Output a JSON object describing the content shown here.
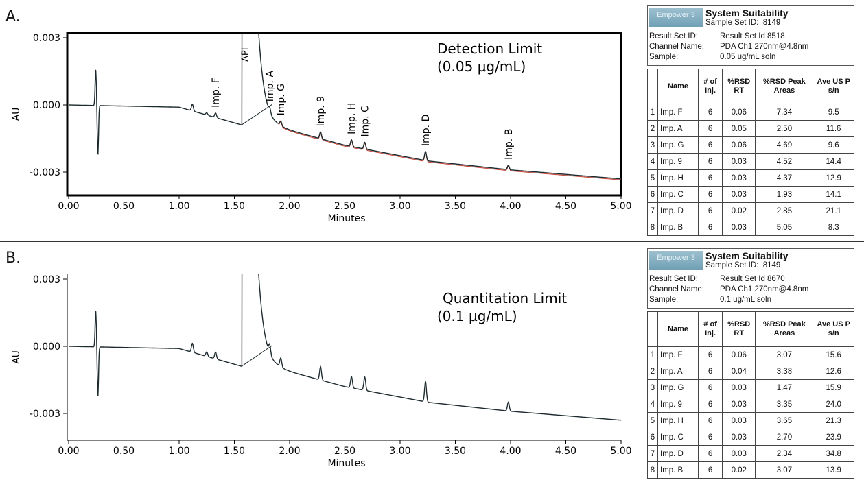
{
  "panels": [
    {
      "label": "A.",
      "result_set_id": "Result Set Id 8518",
      "sample": "0.05 ug/mL soln",
      "title": "Detection Limit",
      "conc": "(0.05 µg/mL)",
      "rows": [
        [
          "1",
          "Imp. F",
          "6",
          "0.06",
          "7.34",
          "9.5"
        ],
        [
          "2",
          "Imp. A",
          "6",
          "0.05",
          "2.50",
          "11.6"
        ],
        [
          "3",
          "Imp. G",
          "6",
          "0.06",
          "4.69",
          "9.6"
        ],
        [
          "4",
          "Imp. 9",
          "6",
          "0.03",
          "4.52",
          "14.4"
        ],
        [
          "5",
          "Imp. H",
          "6",
          "0.03",
          "4.37",
          "12.9"
        ],
        [
          "6",
          "Imp. C",
          "6",
          "0.03",
          "1.93",
          "14.1"
        ],
        [
          "7",
          "Imp. D",
          "6",
          "0.02",
          "2.85",
          "21.1"
        ],
        [
          "8",
          "Imp. B",
          "6",
          "0.03",
          "5.05",
          "8.3"
        ]
      ]
    },
    {
      "label": "B.",
      "result_set_id": "Result Set Id 8670",
      "sample": "0.1 ug/mL soln",
      "title": "Quantitation Limit",
      "conc": "(0.1 µg/mL)",
      "rows": [
        [
          "1",
          "Imp. F",
          "6",
          "0.06",
          "3.07",
          "15.6"
        ],
        [
          "2",
          "Imp. A",
          "6",
          "0.04",
          "3.38",
          "12.6"
        ],
        [
          "3",
          "Imp. G",
          "6",
          "0.03",
          "1.47",
          "15.9"
        ],
        [
          "4",
          "Imp. 9",
          "6",
          "0.03",
          "3.35",
          "24.0"
        ],
        [
          "5",
          "Imp. H",
          "6",
          "0.03",
          "3.65",
          "21.3"
        ],
        [
          "6",
          "Imp. C",
          "6",
          "0.03",
          "2.70",
          "23.9"
        ],
        [
          "7",
          "Imp. D",
          "6",
          "0.03",
          "2.34",
          "34.8"
        ],
        [
          "8",
          "Imp. B",
          "6",
          "0.02",
          "3.07",
          "13.9"
        ]
      ]
    }
  ],
  "suitability": {
    "logo": "Empower 3",
    "title": "System Suitability",
    "sample_set_label": "Sample Set ID:",
    "sample_set_id": "8149",
    "result_set_label": "Result Set ID:",
    "channel_label": "Channel Name:",
    "channel": "PDA Ch1 270nm@4.8nm",
    "sample_label": "Sample:",
    "headers": [
      "",
      "Name",
      "# of Inj.",
      "%RSD RT",
      "%RSD Peak Areas",
      "Ave US P s/n"
    ]
  },
  "chart_data": [
    {
      "type": "line",
      "xlabel": "Minutes",
      "ylabel": "AU",
      "xlim": [
        0,
        5
      ],
      "ylim": [
        -0.0042,
        0.0032
      ],
      "xticks": [
        "0.00",
        "0.50",
        "1.00",
        "1.50",
        "2.00",
        "2.50",
        "3.00",
        "3.50",
        "4.00",
        "4.50",
        "5.00"
      ],
      "yticks": [
        "0.003",
        "0.000",
        "-0.003"
      ],
      "baseline": [
        [
          0,
          0.0
        ],
        [
          1.0,
          -0.0001
        ],
        [
          1.57,
          -0.0009
        ],
        [
          1.9,
          -0.001
        ],
        [
          2.5,
          -0.0018
        ],
        [
          3.25,
          -0.0025
        ],
        [
          4.0,
          -0.0029
        ],
        [
          5.0,
          -0.0033
        ]
      ],
      "peaks": [
        {
          "rt": 1.12,
          "h": 0.0003
        },
        {
          "rt": 1.25,
          "h": 0.0001
        },
        {
          "rt": 1.33,
          "h": 0.0002,
          "name": "Imp. F"
        },
        {
          "rt": 1.82,
          "h": 0.0002,
          "name": "Imp. A"
        },
        {
          "rt": 1.92,
          "h": 0.0002,
          "name": "Imp. G"
        },
        {
          "rt": 2.28,
          "h": 0.0003,
          "name": "Imp. 9"
        },
        {
          "rt": 2.56,
          "h": 0.0003,
          "name": "Imp. H"
        },
        {
          "rt": 2.68,
          "h": 0.0003,
          "name": "Imp. C"
        },
        {
          "rt": 3.23,
          "h": 0.0004,
          "name": "Imp. D"
        },
        {
          "rt": 3.98,
          "h": 0.0002,
          "name": "Imp. B"
        }
      ],
      "api": {
        "name": "API",
        "rt": 1.62
      }
    },
    {
      "type": "line",
      "xlabel": "Minutes",
      "ylabel": "AU",
      "xlim": [
        0,
        5
      ],
      "ylim": [
        -0.0042,
        0.0032
      ],
      "xticks": [
        "0.00",
        "0.50",
        "1.00",
        "1.50",
        "2.00",
        "2.50",
        "3.00",
        "3.50",
        "4.00",
        "4.50",
        "5.00"
      ],
      "yticks": [
        "0.003",
        "0.000",
        "-0.003"
      ],
      "baseline": [
        [
          0,
          0.0
        ],
        [
          1.0,
          -0.0001
        ],
        [
          1.57,
          -0.0009
        ],
        [
          1.9,
          -0.001
        ],
        [
          2.5,
          -0.0018
        ],
        [
          3.25,
          -0.0025
        ],
        [
          4.0,
          -0.0029
        ],
        [
          5.0,
          -0.0033
        ]
      ],
      "peaks": [
        {
          "rt": 1.12,
          "h": 0.0004
        },
        {
          "rt": 1.25,
          "h": 0.0002
        },
        {
          "rt": 1.33,
          "h": 0.0003
        },
        {
          "rt": 1.82,
          "h": 0.0004
        },
        {
          "rt": 1.92,
          "h": 0.0004
        },
        {
          "rt": 2.28,
          "h": 0.0006
        },
        {
          "rt": 2.56,
          "h": 0.0005
        },
        {
          "rt": 2.68,
          "h": 0.0006
        },
        {
          "rt": 3.23,
          "h": 0.0009
        },
        {
          "rt": 3.98,
          "h": 0.0004
        }
      ],
      "api": {
        "rt": 1.62
      }
    }
  ]
}
